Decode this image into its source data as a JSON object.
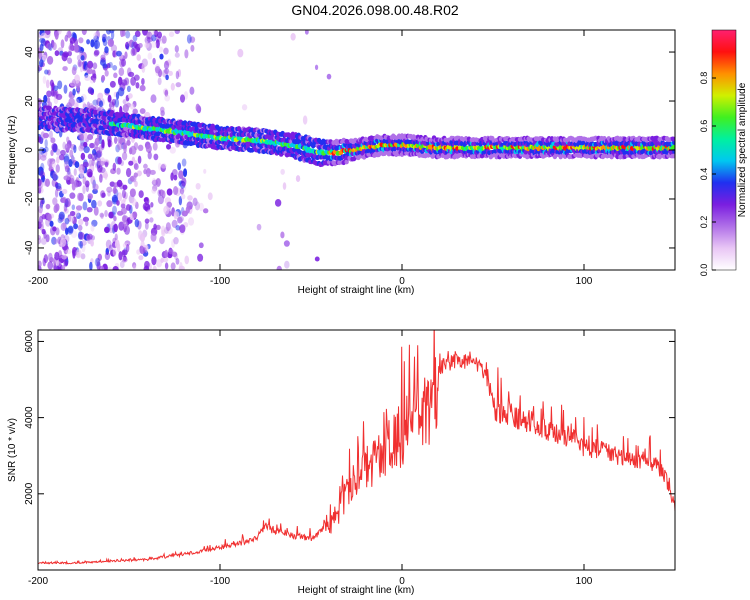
{
  "title": "GN04.2026.098.00.48.R02",
  "chart_data": [
    {
      "type": "heatmap",
      "name": "spectrogram",
      "xlabel": "Height of straight line (km)",
      "ylabel": "Frequency (Hz)",
      "xlim": [
        -200,
        150
      ],
      "ylim": [
        -49,
        49
      ],
      "xticks": [
        -200,
        -100,
        0,
        100
      ],
      "yticks": [
        -40,
        -20,
        0,
        20,
        40
      ],
      "colorbar": {
        "label": "Normalized spectral amplitude",
        "range": [
          0,
          1
        ],
        "ticks": [
          "0.0",
          "0.2",
          "0.4",
          "0.6",
          "0.8"
        ],
        "colors": [
          "#ffffff",
          "#e9c6f5",
          "#b070e8",
          "#7a1ee0",
          "#2030f0",
          "#00c8f0",
          "#00f0a0",
          "#40f020",
          "#d0f000",
          "#ff9000",
          "#ff1010",
          "#ff2070"
        ]
      },
      "ridge": {
        "x": [
          -200,
          -170,
          -160,
          -140,
          -120,
          -100,
          -80,
          -60,
          -45,
          -35,
          -20,
          -10,
          0,
          20,
          40,
          60,
          80,
          90,
          100,
          120,
          150
        ],
        "y": [
          13,
          12,
          11,
          9,
          7,
          5,
          4,
          2,
          -1,
          -1,
          1,
          2,
          2,
          1,
          1,
          1,
          1,
          1,
          1,
          1,
          1
        ]
      }
    },
    {
      "type": "line",
      "name": "snr",
      "xlabel": "Height of straight line (km)",
      "ylabel": "SNR (10 * v/v)",
      "xlim": [
        -200,
        150
      ],
      "ylim": [
        0,
        6300
      ],
      "xticks": [
        -200,
        -100,
        0,
        100
      ],
      "yticks": [
        2000,
        4000,
        6000
      ],
      "color": "#f03030",
      "envelope": {
        "x": [
          -200,
          -180,
          -160,
          -140,
          -120,
          -100,
          -90,
          -80,
          -75,
          -70,
          -60,
          -50,
          -40,
          -35,
          -30,
          -20,
          -10,
          0,
          10,
          20,
          30,
          40,
          45,
          50,
          60,
          70,
          80,
          90,
          100,
          110,
          120,
          130,
          140,
          145,
          150
        ],
        "y": [
          200,
          200,
          250,
          300,
          450,
          650,
          750,
          900,
          1300,
          1100,
          1000,
          900,
          1300,
          1900,
          2600,
          3300,
          3800,
          4300,
          5000,
          5500,
          5700,
          5700,
          5400,
          4600,
          4400,
          4200,
          4000,
          3800,
          3500,
          3400,
          3200,
          3050,
          2950,
          2600,
          1800
        ]
      }
    }
  ]
}
